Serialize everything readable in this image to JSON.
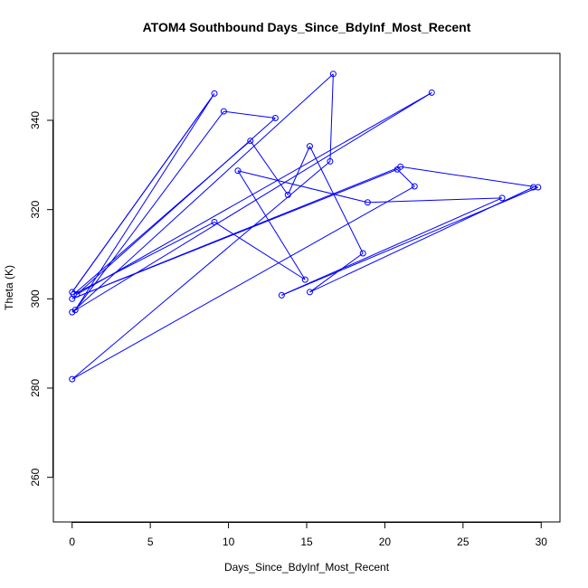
{
  "chart_data": {
    "type": "scatter",
    "title": "ATOM4 Southbound Days_Since_BdyInf_Most_Recent",
    "xlabel": "Days_Since_BdyInf_Most_Recent",
    "ylabel": "Theta (K)",
    "xlim": [
      -1.2,
      31.2
    ],
    "ylim": [
      250,
      355
    ],
    "xticks": [
      0,
      5,
      10,
      15,
      20,
      25,
      30
    ],
    "yticks": [
      260,
      280,
      300,
      320,
      340
    ],
    "grid": false,
    "legend": "none",
    "mode": "points+lines",
    "colors": {
      "series": "#0000ff",
      "axis": "#000000"
    },
    "points": [
      {
        "x": 0.0,
        "y": 301.5
      },
      {
        "x": 9.1,
        "y": 346.0
      },
      {
        "x": 0.2,
        "y": 297.5
      },
      {
        "x": 9.7,
        "y": 342.0
      },
      {
        "x": 13.0,
        "y": 340.5
      },
      {
        "x": 0.3,
        "y": 301.0
      },
      {
        "x": 23.0,
        "y": 346.2
      },
      {
        "x": 0.0,
        "y": 297.0
      },
      {
        "x": 16.7,
        "y": 350.4
      },
      {
        "x": 16.5,
        "y": 330.8
      },
      {
        "x": 0.0,
        "y": 282.0
      },
      {
        "x": 21.9,
        "y": 325.2
      },
      {
        "x": 20.8,
        "y": 329.0
      },
      {
        "x": 0.0,
        "y": 300.0
      },
      {
        "x": 21.0,
        "y": 329.6
      },
      {
        "x": 29.8,
        "y": 325.0
      },
      {
        "x": 13.4,
        "y": 300.8
      },
      {
        "x": 27.5,
        "y": 322.6
      },
      {
        "x": 18.9,
        "y": 321.6
      },
      {
        "x": 10.6,
        "y": 328.7
      },
      {
        "x": 14.9,
        "y": 304.3
      },
      {
        "x": 9.1,
        "y": 317.2
      },
      {
        "x": 0.1,
        "y": 301.0
      },
      {
        "x": 11.4,
        "y": 335.4
      },
      {
        "x": 13.8,
        "y": 323.3
      },
      {
        "x": 15.2,
        "y": 334.2
      },
      {
        "x": 18.6,
        "y": 310.2
      },
      {
        "x": 15.2,
        "y": 301.5
      },
      {
        "x": 29.5,
        "y": 325.0
      }
    ],
    "extra_points": [
      {
        "x": 8.9,
        "y": 345.0
      }
    ]
  }
}
